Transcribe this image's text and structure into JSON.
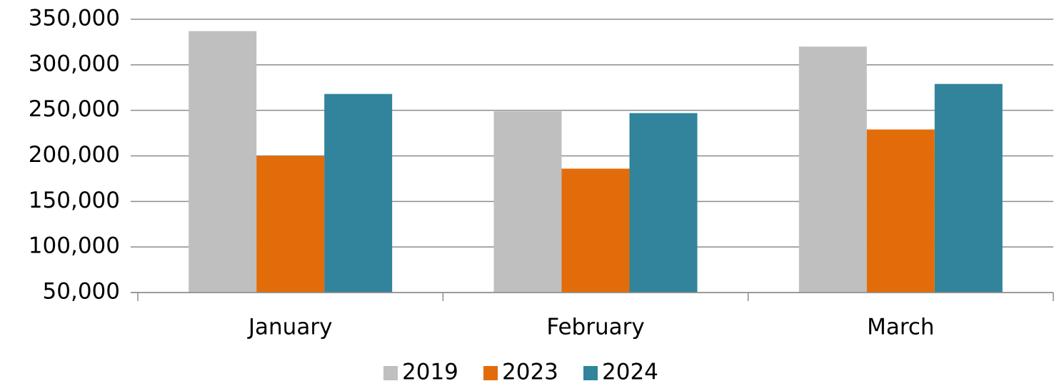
{
  "chart_data": {
    "type": "bar",
    "categories": [
      "January",
      "February",
      "March"
    ],
    "series": [
      {
        "name": "2019",
        "color": "#bfbfbf",
        "values": [
          337000,
          249000,
          320000
        ]
      },
      {
        "name": "2023",
        "color": "#e36c0a",
        "values": [
          200000,
          186000,
          229000
        ]
      },
      {
        "name": "2024",
        "color": "#31849b",
        "values": [
          268000,
          247000,
          279000
        ]
      }
    ],
    "ylim": [
      50000,
      350000
    ],
    "yticks": [
      {
        "value": 50000,
        "label": "50,000"
      },
      {
        "value": 100000,
        "label": "100,000"
      },
      {
        "value": 150000,
        "label": "150,000"
      },
      {
        "value": 200000,
        "label": "200,000"
      },
      {
        "value": 250000,
        "label": "250,000"
      },
      {
        "value": 300000,
        "label": "300,000"
      },
      {
        "value": 350000,
        "label": "350,000"
      }
    ],
    "grid": true,
    "legend": "bottom"
  }
}
